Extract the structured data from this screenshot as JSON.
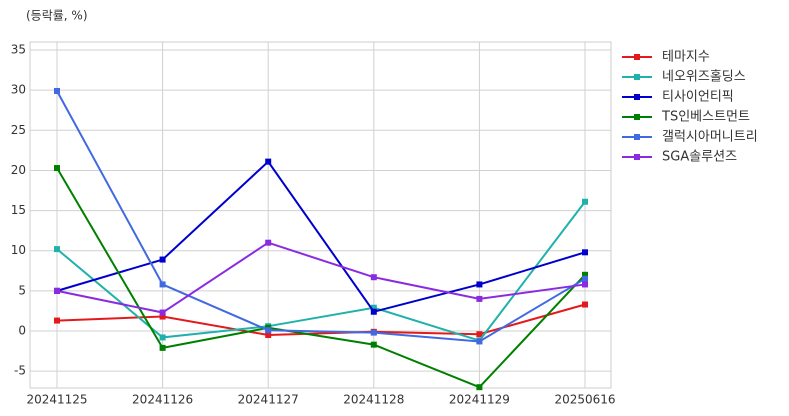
{
  "chart_data": {
    "type": "line",
    "y_label": "(등락률, %)",
    "categories": [
      "20241125",
      "20241126",
      "20241127",
      "20241128",
      "20241129",
      "20250616"
    ],
    "series": [
      {
        "name": "테마지수",
        "color": "#e31a1c",
        "values": [
          1.3,
          1.8,
          -0.5,
          -0.1,
          -0.4,
          3.3
        ]
      },
      {
        "name": "네오위즈홀딩스",
        "color": "#20b2aa",
        "values": [
          10.2,
          -0.8,
          0.6,
          2.9,
          -1.2,
          16.1
        ]
      },
      {
        "name": "티사이언티픽",
        "color": "#0000cd",
        "values": [
          5.0,
          8.9,
          21.1,
          2.4,
          5.8,
          9.8
        ]
      },
      {
        "name": "TS인베스트먼트",
        "color": "#008000",
        "values": [
          20.3,
          -2.1,
          0.4,
          -1.7,
          -7.0,
          7.0
        ]
      },
      {
        "name": "갤럭시아머니트리",
        "color": "#4169e1",
        "values": [
          29.9,
          5.8,
          0.1,
          -0.2,
          -1.3,
          6.5
        ]
      },
      {
        "name": "SGA솔루션즈",
        "color": "#8a2be2",
        "values": [
          5.0,
          2.3,
          11.0,
          6.7,
          4.0,
          5.8
        ]
      }
    ],
    "ylim": [
      -7.1,
      36
    ],
    "yticks": [
      -5,
      0,
      5,
      10,
      15,
      20,
      25,
      30,
      35
    ],
    "grid": true,
    "legend": "right"
  }
}
